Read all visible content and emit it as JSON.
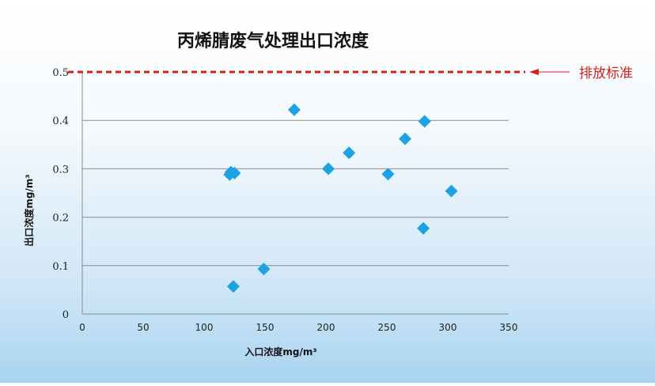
{
  "chart_data": {
    "type": "scatter",
    "title": "丙烯腈废气处理出口浓度",
    "xlabel": "入口浓度mg/m³",
    "ylabel": "出口浓度mg/m³",
    "xlim": [
      0,
      350
    ],
    "ylim": [
      0,
      0.5
    ],
    "x_ticks": [
      0,
      50,
      100,
      150,
      200,
      250,
      300,
      350
    ],
    "x_tick_labels": [
      "0",
      "50",
      "100",
      "150",
      "200",
      "250",
      "300",
      "350"
    ],
    "y_ticks": [
      0,
      0.1,
      0.2,
      0.3,
      0.4,
      0.5
    ],
    "y_tick_labels": [
      "0",
      "0.1",
      "0.2",
      "0.3",
      "0.4",
      "0.5"
    ],
    "grid": true,
    "marker": "diamond",
    "series": [
      {
        "points": [
          [
            121,
            0.288
          ],
          [
            122,
            0.293
          ],
          [
            125,
            0.291
          ],
          [
            124,
            0.057
          ],
          [
            149,
            0.093
          ],
          [
            174,
            0.422
          ],
          [
            202,
            0.3
          ],
          [
            219,
            0.333
          ],
          [
            251,
            0.289
          ],
          [
            265,
            0.362
          ],
          [
            280,
            0.177
          ],
          [
            281,
            0.398
          ],
          [
            303,
            0.254
          ]
        ]
      }
    ],
    "reference_line": {
      "y": 0.5,
      "label": "排放标准"
    },
    "colors": {
      "marker": "#1ba3e3",
      "reference": "#dd1c1c",
      "grid": "#8c8c8c"
    }
  }
}
